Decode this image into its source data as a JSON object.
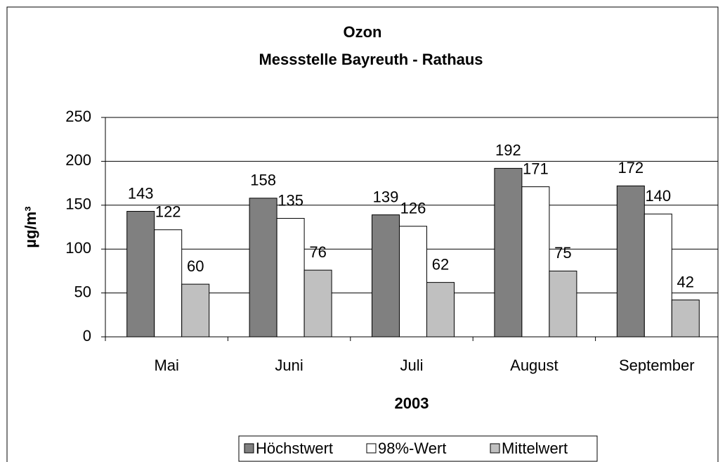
{
  "chart_data": {
    "type": "bar",
    "title": "Ozon",
    "subtitle": "Messstelle Bayreuth - Rathaus",
    "x_label": "2003",
    "y_label": "µg/m³",
    "categories": [
      "Mai",
      "Juni",
      "Juli",
      "August",
      "September"
    ],
    "series": [
      {
        "name": "Höchstwert",
        "color": "#808080",
        "values": [
          143,
          158,
          139,
          192,
          172
        ]
      },
      {
        "name": "98%-Wert",
        "color": "#ffffff",
        "values": [
          122,
          135,
          126,
          171,
          140
        ]
      },
      {
        "name": "Mittelwert",
        "color": "#c0c0c0",
        "values": [
          60,
          76,
          62,
          75,
          42
        ]
      }
    ],
    "ylim": [
      0,
      250
    ],
    "yticks": [
      0,
      50,
      100,
      150,
      200,
      250
    ],
    "grid": true,
    "legend": "bottom"
  }
}
